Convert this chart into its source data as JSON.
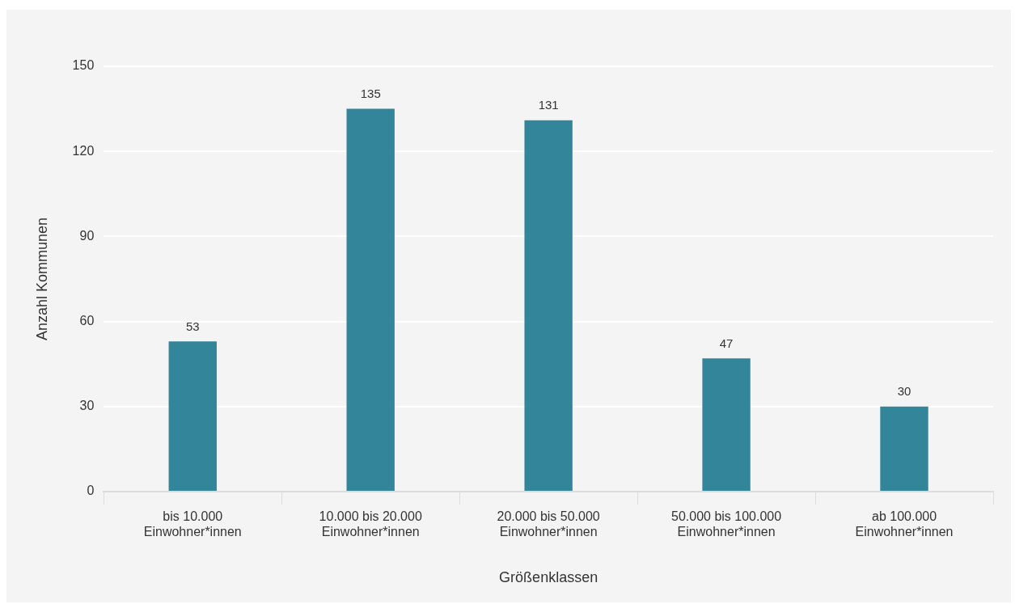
{
  "chart_data": {
    "type": "bar",
    "xlabel": "Größenklassen",
    "ylabel": "Anzahl Kommunen",
    "categories": [
      "bis 10.000\nEinwohner*innen",
      "10.000 bis 20.000\nEinwohner*innen",
      "20.000 bis 50.000\nEinwohner*innen",
      "50.000 bis 100.000\nEinwohner*innen",
      "ab 100.000\nEinwohner*innen"
    ],
    "values": [
      53,
      135,
      131,
      47,
      30
    ],
    "color": "#33869a",
    "ylim": [
      0,
      150
    ],
    "yticks": [
      0,
      30,
      60,
      90,
      120,
      150
    ],
    "grid": "y",
    "data_labels": true
  }
}
